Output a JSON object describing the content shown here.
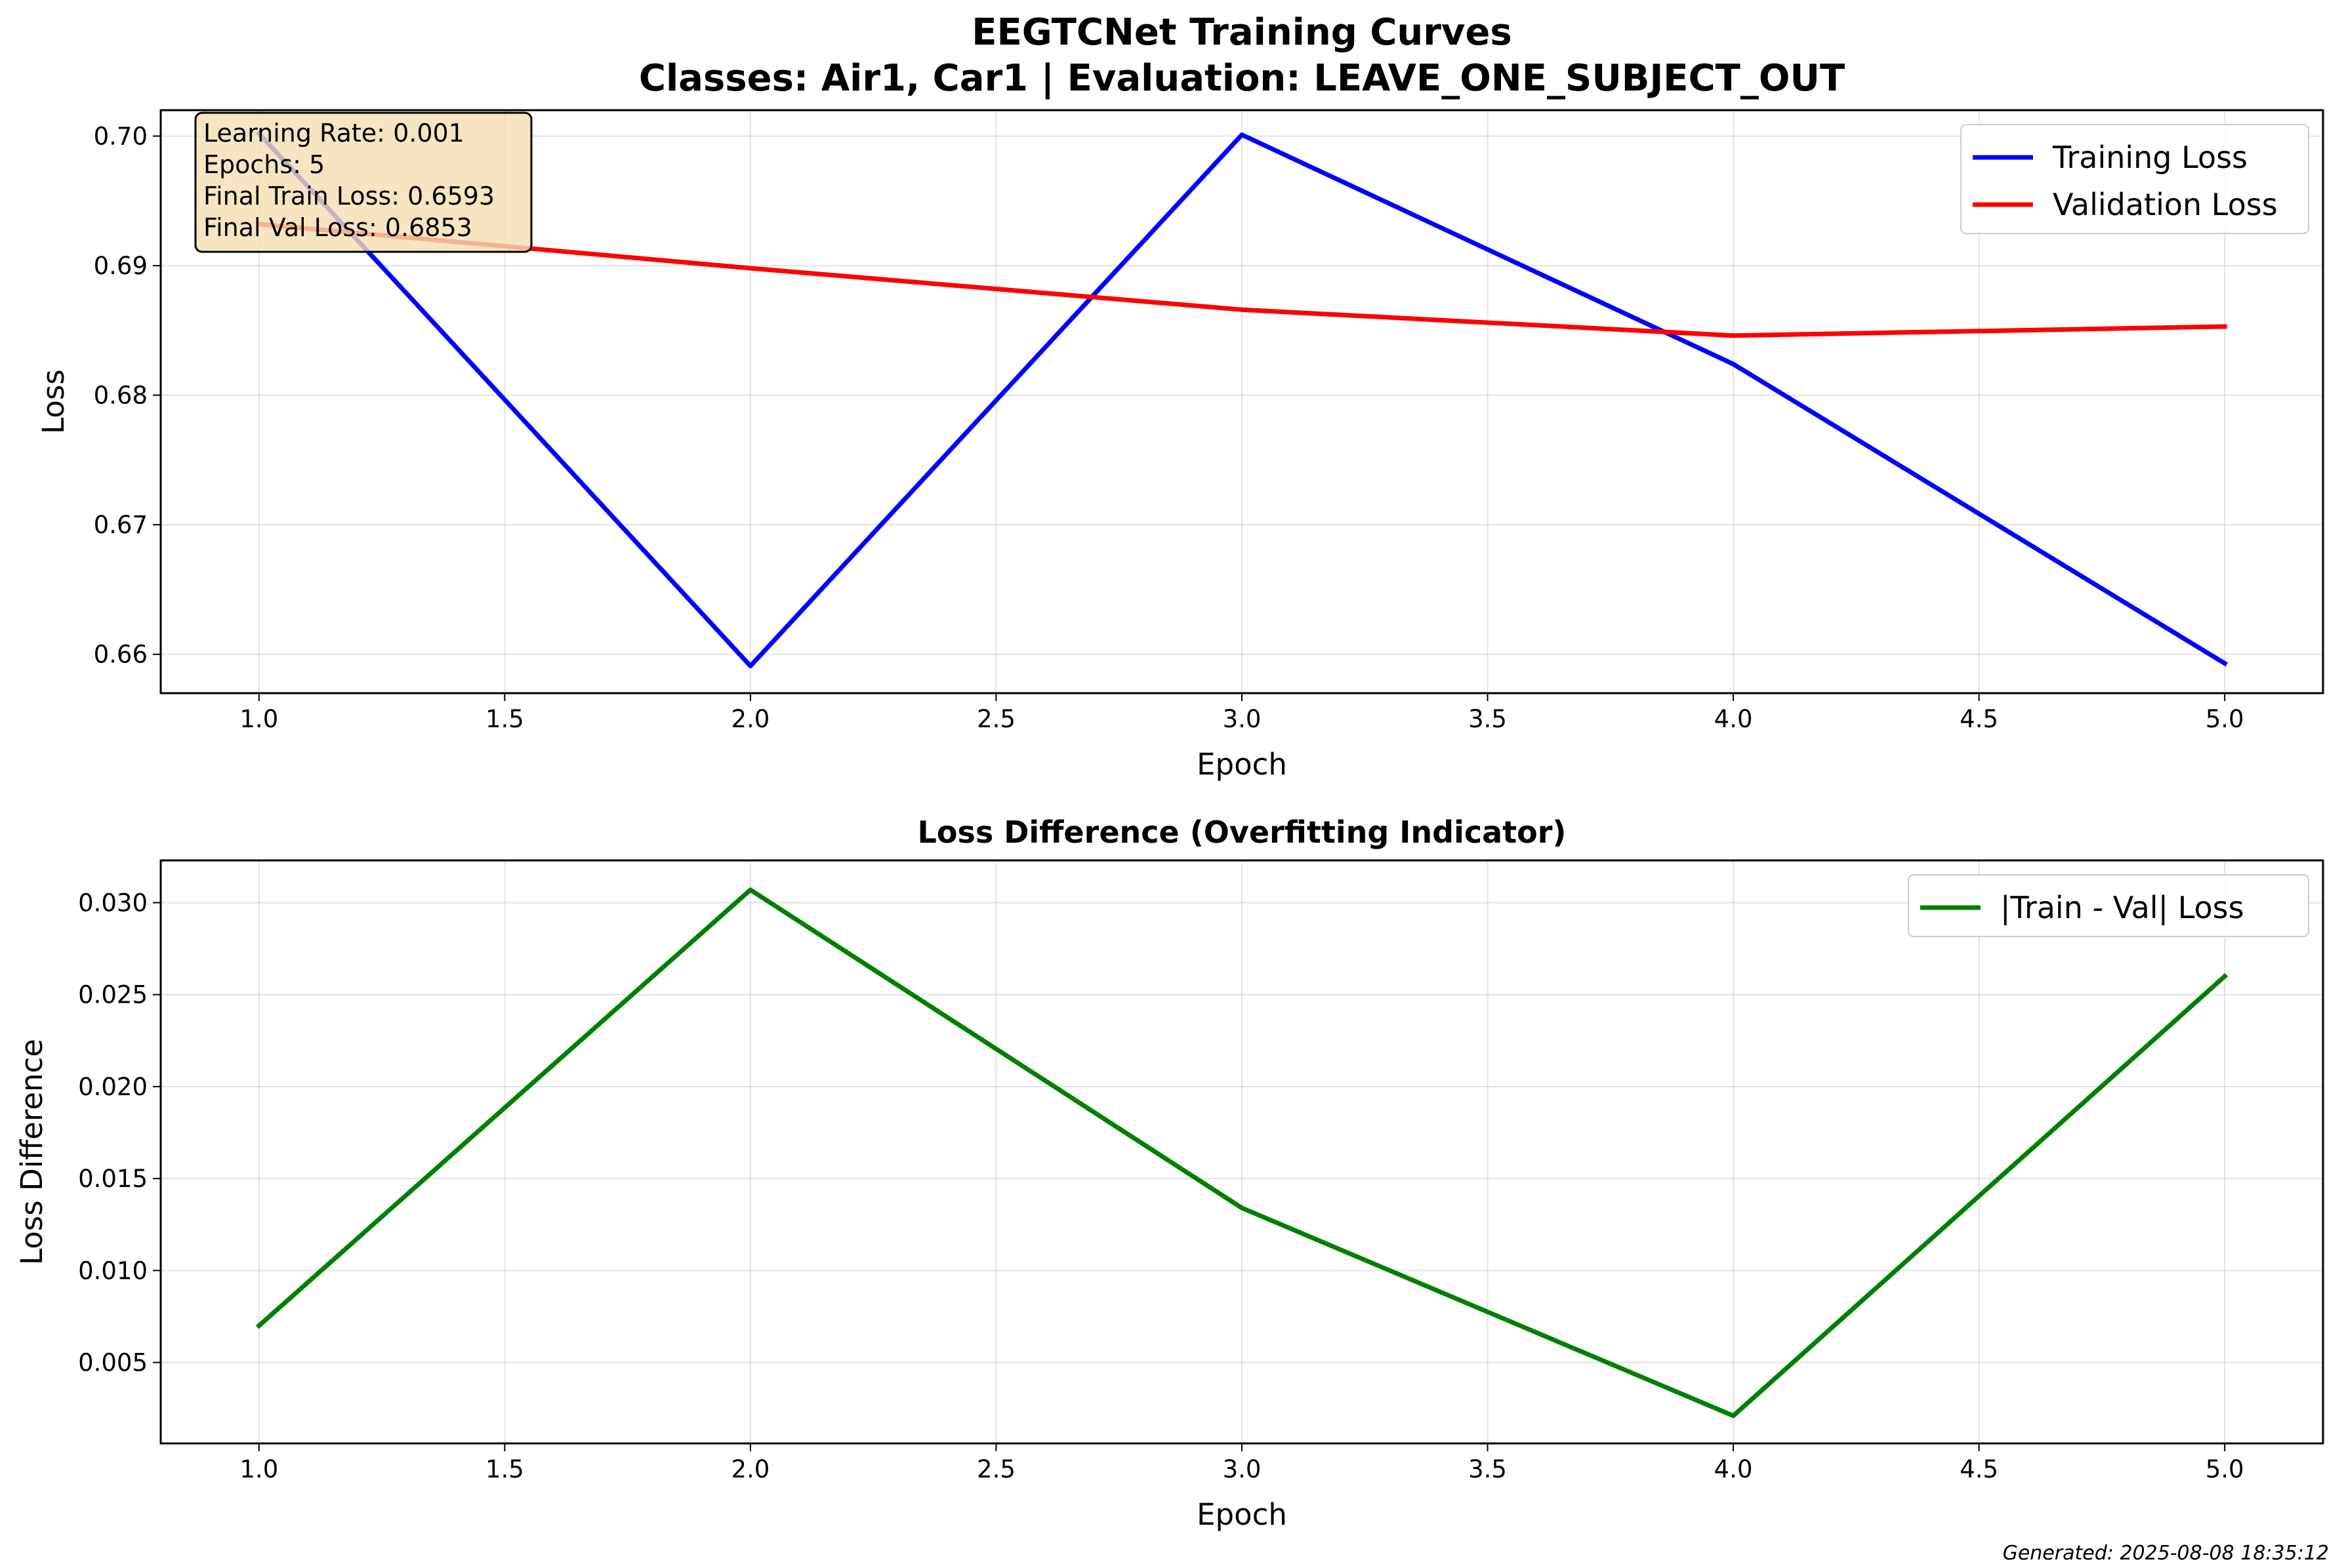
{
  "figure": {
    "title_line1": "EEGTCNet Training Curves",
    "title_line2": "Classes: Air1, Car1 | Evaluation: LEAVE_ONE_SUBJECT_OUT",
    "footer": "Generated: 2025-08-08 18:35:12"
  },
  "info_box": {
    "lines": [
      "Learning Rate: 0.001",
      "Epochs: 5",
      "Final Train Loss: 0.6593",
      "Final Val Loss: 0.6853"
    ],
    "background_color": "#f5deb3"
  },
  "chart_data": [
    {
      "type": "line",
      "title": "",
      "xlabel": "Epoch",
      "ylabel": "Loss",
      "xlim": [
        0.8,
        5.2
      ],
      "ylim": [
        0.657,
        0.702
      ],
      "xticks": [
        "1.0",
        "1.5",
        "2.0",
        "2.5",
        "3.0",
        "3.5",
        "4.0",
        "4.5",
        "5.0"
      ],
      "yticks": [
        "0.66",
        "0.67",
        "0.68",
        "0.69",
        "0.70"
      ],
      "grid": true,
      "legend_position": "upper right",
      "x": [
        1,
        2,
        3,
        4,
        5
      ],
      "series": [
        {
          "name": "Training Loss",
          "color": "#0000ff",
          "values": [
            0.7002,
            0.6591,
            0.7001,
            0.6824,
            0.6593
          ]
        },
        {
          "name": "Validation Loss",
          "color": "#ff0000",
          "values": [
            0.6932,
            0.6898,
            0.6866,
            0.6846,
            0.6853
          ]
        }
      ]
    },
    {
      "type": "line",
      "title": "Loss Difference (Overfitting Indicator)",
      "xlabel": "Epoch",
      "ylabel": "Loss Difference",
      "xlim": [
        0.8,
        5.2
      ],
      "ylim": [
        0.0006,
        0.0323
      ],
      "xticks": [
        "1.0",
        "1.5",
        "2.0",
        "2.5",
        "3.0",
        "3.5",
        "4.0",
        "4.5",
        "5.0"
      ],
      "yticks": [
        "0.005",
        "0.010",
        "0.015",
        "0.020",
        "0.025",
        "0.030"
      ],
      "grid": true,
      "legend_position": "upper right",
      "x": [
        1,
        2,
        3,
        4,
        5
      ],
      "series": [
        {
          "name": "|Train - Val| Loss",
          "color": "#008000",
          "values": [
            0.007,
            0.0307,
            0.0134,
            0.0021,
            0.026
          ]
        }
      ]
    }
  ]
}
